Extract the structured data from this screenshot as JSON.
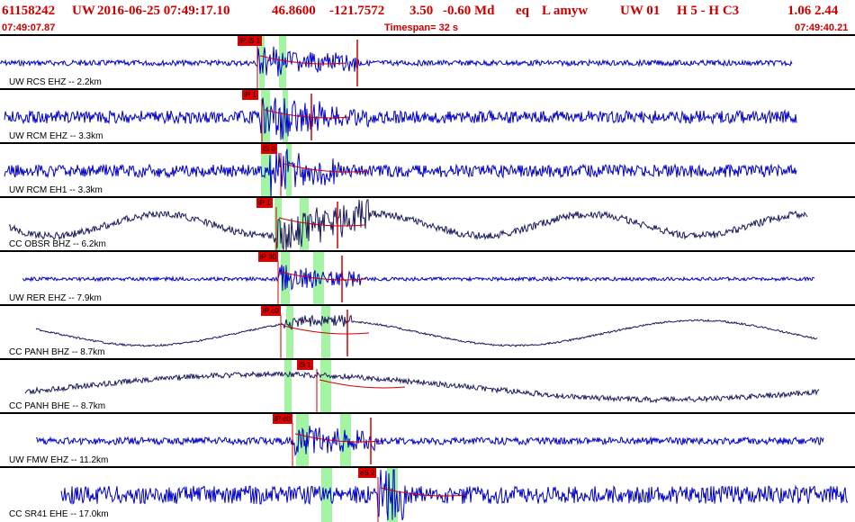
{
  "header": {
    "event_id": "61158242",
    "network": "UW",
    "datetime": "2016-06-25 07:49:17.10",
    "lat": "46.8600",
    "lon": "-121.7572",
    "depth": "3.50",
    "magnitude": "-0.60 Md",
    "event_type": "eq",
    "extra": "L amyw",
    "source": "UW 01",
    "quality": "H  5  -  H C3",
    "values": "1.06  2.44"
  },
  "subheader": {
    "start_time": "07:49:07.87",
    "timespan": "Timespan=  32 s",
    "end_time": "07:49:40.21"
  },
  "colors": {
    "header_text": "#cc0000",
    "trace_blue": "#0000cc",
    "trace_navy": "#1a1a5e",
    "pick_red": "#e00000",
    "band_green": "#66ee66"
  },
  "panels": [
    {
      "label": "UW RCS EHZ -- 2.2km",
      "pick": "iP:iS 1",
      "trace_color": "blue"
    },
    {
      "label": "UW RCM EHZ -- 3.3km",
      "pick": "iP 1",
      "trace_color": "blue"
    },
    {
      "label": "UW RCM EH1 -- 3.3km",
      "pick": "iS 0",
      "trace_color": "blue"
    },
    {
      "label": "CC OBSR BHZ -- 6.2km",
      "pick": "iP 1",
      "trace_color": "navy"
    },
    {
      "label": "UW RER EHZ -- 7.9km",
      "pick": "iP 30",
      "trace_color": "blue"
    },
    {
      "label": "CC PANH BHZ -- 8.7km",
      "pick": "iP c0",
      "trace_color": "navy"
    },
    {
      "label": "CC PANH BHE -- 8.7km",
      "pick": "iS 1",
      "trace_color": "navy"
    },
    {
      "label": "UW FMW EHZ -- 11.2km",
      "pick": "iP c0",
      "trace_color": "blue"
    },
    {
      "label": "CC SR41 EHE -- 17.0km",
      "pick": "eS 2",
      "trace_color": "blue"
    }
  ]
}
